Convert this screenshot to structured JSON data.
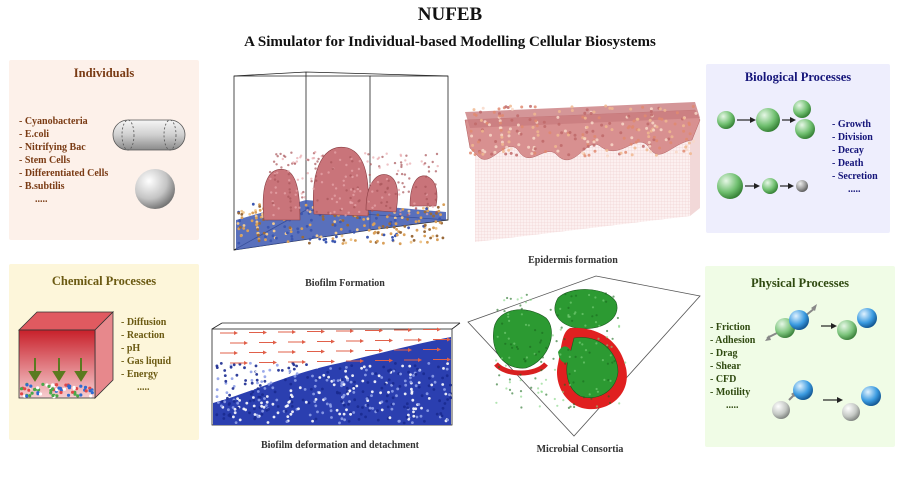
{
  "header": {
    "title": "NUFEB",
    "subtitle": "A Simulator for Individual-based Modelling Cellular Biosystems"
  },
  "individuals": {
    "title": "Individuals",
    "items": [
      "- Cyanobacteria",
      "- E.coli",
      "- Nitrifying Bac",
      "- Stem Cells",
      "- Differentiated Cells",
      "- B.subtilis",
      "....."
    ]
  },
  "chemical": {
    "title": "Chemical Processes",
    "items": [
      "- Diffusion",
      "- Reaction",
      "- pH",
      "- Gas liquid",
      "- Energy",
      "....."
    ]
  },
  "biological": {
    "title": "Biological Processes",
    "items": [
      "- Growth",
      "- Division",
      "- Decay",
      "- Death",
      "- Secretion",
      "....."
    ]
  },
  "physical": {
    "title": "Physical Processes",
    "items": [
      "- Friction",
      "- Adhesion",
      "- Drag",
      "- Shear",
      "- CFD",
      "- Motility",
      "....."
    ]
  },
  "captions": {
    "biofilm_formation": "Biofilm Formation",
    "epidermis_formation": "Epidermis formation",
    "deformation": "Biofilm deformation and detachment",
    "consortia": "Microbial Consortia"
  },
  "colors": {
    "individuals_bg": "#fdf1ea",
    "chemical_bg": "#fdf6da",
    "biological_bg": "#eeeefd",
    "physical_bg": "#f0fce6"
  }
}
